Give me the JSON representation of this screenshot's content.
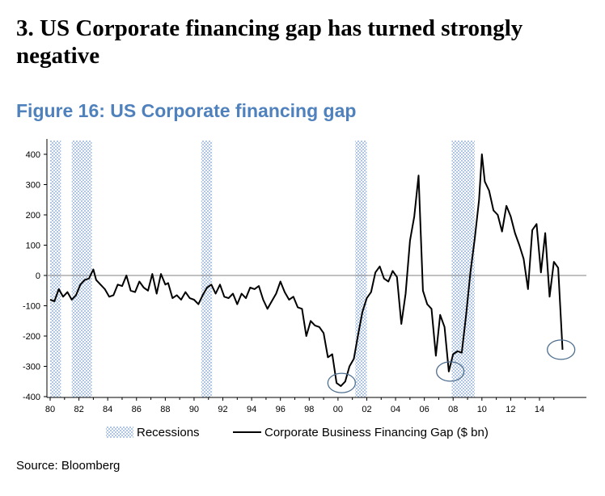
{
  "headline": "3. US Corporate financing gap has turned strongly negative",
  "figure_title": "Figure 16: US Corporate financing gap",
  "source": "Source: Bloomberg",
  "colors": {
    "title_blue": "#4f81bd",
    "line": "#000000",
    "recession_fill": "#aec6e4",
    "zero_line": "#808080",
    "circle": "#4f6f8f"
  },
  "chart_data": {
    "type": "line",
    "title": "",
    "xlabel": "",
    "ylabel": "",
    "xlim": [
      1980,
      2016
    ],
    "ylim": [
      -400,
      450
    ],
    "y_ticks": [
      400,
      300,
      200,
      100,
      0,
      -100,
      -200,
      -300,
      -400
    ],
    "x_ticks": [
      1980,
      1982,
      1984,
      1986,
      1988,
      1990,
      1992,
      1994,
      1996,
      1998,
      2000,
      2002,
      2004,
      2006,
      2008,
      2010,
      2012,
      2014
    ],
    "x_tick_labels": [
      "80",
      "82",
      "84",
      "86",
      "88",
      "90",
      "92",
      "94",
      "96",
      "98",
      "00",
      "02",
      "04",
      "06",
      "08",
      "10",
      "12",
      "14"
    ],
    "legend": [
      "Recessions",
      "Corporate Business Financing Gap ($ bn)"
    ],
    "recessions": [
      [
        1980.0,
        1980.75
      ],
      [
        1981.5,
        1982.9
      ],
      [
        1990.5,
        1991.25
      ],
      [
        2001.2,
        2002.0
      ],
      [
        2007.9,
        2009.5
      ]
    ],
    "highlights": [
      [
        2000.25,
        -355
      ],
      [
        2007.8,
        -317
      ],
      [
        2015.5,
        -245
      ]
    ],
    "series": [
      {
        "name": "Corporate Business Financing Gap ($ bn)",
        "x": [
          1980.0,
          1980.3,
          1980.6,
          1980.9,
          1981.2,
          1981.5,
          1981.8,
          1982.1,
          1982.4,
          1982.7,
          1983.0,
          1983.2,
          1983.5,
          1983.8,
          1984.1,
          1984.4,
          1984.7,
          1985.0,
          1985.3,
          1985.6,
          1985.9,
          1986.2,
          1986.5,
          1986.8,
          1987.1,
          1987.4,
          1987.7,
          1988.0,
          1988.2,
          1988.5,
          1988.8,
          1989.1,
          1989.4,
          1989.7,
          1990.0,
          1990.3,
          1990.6,
          1990.9,
          1991.2,
          1991.5,
          1991.8,
          1992.1,
          1992.4,
          1992.7,
          1993.0,
          1993.3,
          1993.6,
          1993.9,
          1994.2,
          1994.5,
          1994.8,
          1995.1,
          1995.4,
          1995.7,
          1996.0,
          1996.3,
          1996.6,
          1996.9,
          1997.2,
          1997.5,
          1997.8,
          1998.1,
          1998.4,
          1998.7,
          1999.0,
          1999.3,
          1999.6,
          1999.9,
          2000.2,
          2000.5,
          2000.8,
          2001.1,
          2001.4,
          2001.7,
          2002.0,
          2002.3,
          2002.6,
          2002.9,
          2003.2,
          2003.5,
          2003.8,
          2004.1,
          2004.4,
          2004.7,
          2005.0,
          2005.3,
          2005.6,
          2005.9,
          2006.2,
          2006.5,
          2006.8,
          2007.1,
          2007.4,
          2007.7,
          2008.0,
          2008.3,
          2008.6,
          2008.9,
          2009.2,
          2009.5,
          2009.8,
          2010.0,
          2010.2,
          2010.5,
          2010.8,
          2011.1,
          2011.4,
          2011.7,
          2012.0,
          2012.3,
          2012.6,
          2012.9,
          2013.2,
          2013.5,
          2013.8,
          2014.1,
          2014.4,
          2014.7,
          2015.0,
          2015.3,
          2015.6
        ],
        "values": [
          -80,
          -85,
          -45,
          -70,
          -55,
          -80,
          -65,
          -30,
          -15,
          -10,
          20,
          -15,
          -30,
          -45,
          -70,
          -65,
          -30,
          -35,
          0,
          -50,
          -55,
          -20,
          -40,
          -50,
          5,
          -60,
          5,
          -30,
          -25,
          -75,
          -65,
          -80,
          -55,
          -75,
          -80,
          -95,
          -65,
          -40,
          -30,
          -60,
          -30,
          -70,
          -75,
          -60,
          -95,
          -60,
          -75,
          -40,
          -45,
          -35,
          -80,
          -110,
          -85,
          -60,
          -20,
          -55,
          -80,
          -70,
          -105,
          -110,
          -200,
          -150,
          -165,
          -170,
          -190,
          -270,
          -260,
          -355,
          -365,
          -350,
          -300,
          -275,
          -195,
          -120,
          -75,
          -55,
          10,
          30,
          -10,
          -20,
          15,
          -5,
          -160,
          -60,
          115,
          195,
          330,
          -50,
          -95,
          -110,
          -265,
          -130,
          -170,
          -317,
          -260,
          -250,
          -255,
          -130,
          10,
          120,
          250,
          400,
          310,
          280,
          215,
          200,
          145,
          230,
          195,
          140,
          100,
          55,
          -45,
          150,
          170,
          10,
          140,
          -70,
          45,
          25,
          -245
        ]
      }
    ]
  }
}
